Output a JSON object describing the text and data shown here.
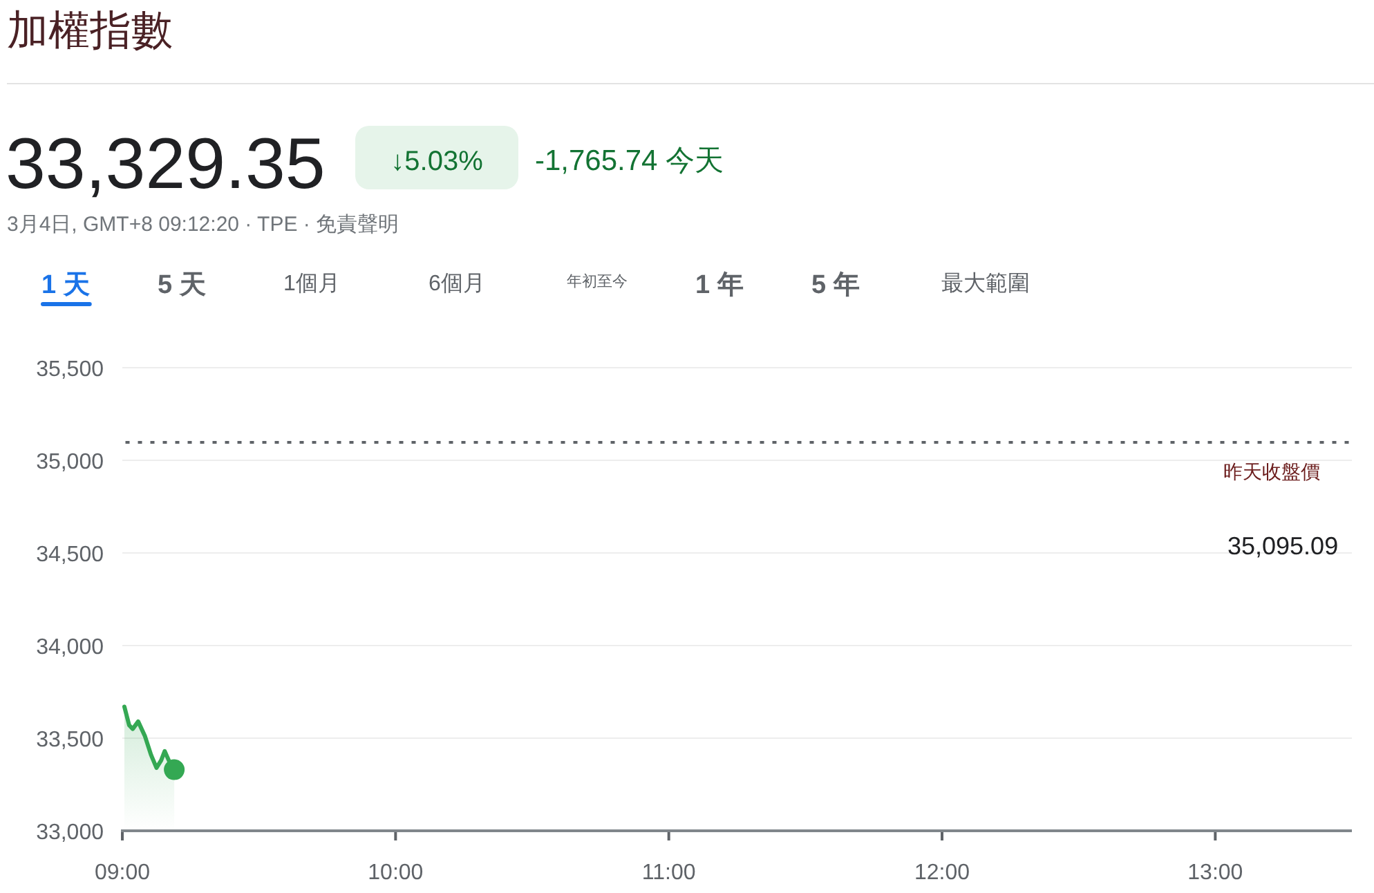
{
  "chart_data": {
    "type": "line",
    "title": "加權指數",
    "subtitle": "33,329.35",
    "annotations": [
      "↓5.03%",
      "-1,765.74 今天",
      "3月4日, GMT+8 09:12:20 · TPE · 免責聲明",
      "1 天",
      "5 天",
      "1個月",
      "6個月",
      "年初至今",
      "1 年",
      "5 年",
      "最大範圍"
    ],
    "x": [
      9.0075,
      9.025,
      9.038,
      9.058,
      9.083,
      9.105,
      9.125,
      9.142,
      9.155,
      9.17,
      9.19
    ],
    "series": [
      {
        "type": "area",
        "color": "#34a853",
        "values": [
          33670,
          33570,
          33550,
          33590,
          33510,
          33410,
          33340,
          33380,
          33430,
          33380,
          33330
        ]
      },
      {
        "type": "scatter",
        "color": "#34a853",
        "x": [
          9.19
        ],
        "values": [
          33330
        ]
      }
    ],
    "xlim": [
      9,
      13.5
    ],
    "xticks": [
      {
        "value": 9,
        "label": "09:00"
      },
      {
        "value": 10,
        "label": "10:00"
      },
      {
        "value": 11,
        "label": "11:00"
      },
      {
        "value": 12,
        "label": "12:00"
      },
      {
        "value": 13,
        "label": "13:00"
      }
    ],
    "ylim": [
      33000,
      35500
    ],
    "yticks": [
      {
        "value": 33000,
        "label": "33,000"
      },
      {
        "value": 33500,
        "label": "33,500"
      },
      {
        "value": 34000,
        "label": "34,000"
      },
      {
        "value": 34500,
        "label": "34,500"
      },
      {
        "value": 35000,
        "label": "35,000"
      },
      {
        "value": 35500,
        "label": "35,500"
      }
    ],
    "grid": "y",
    "ref_lines": [
      {
        "axis": "y",
        "value": 35095.09,
        "label": "昨天收盤價 35,095.09",
        "line_style": "dotted",
        "color": "#5f6368"
      }
    ]
  }
}
